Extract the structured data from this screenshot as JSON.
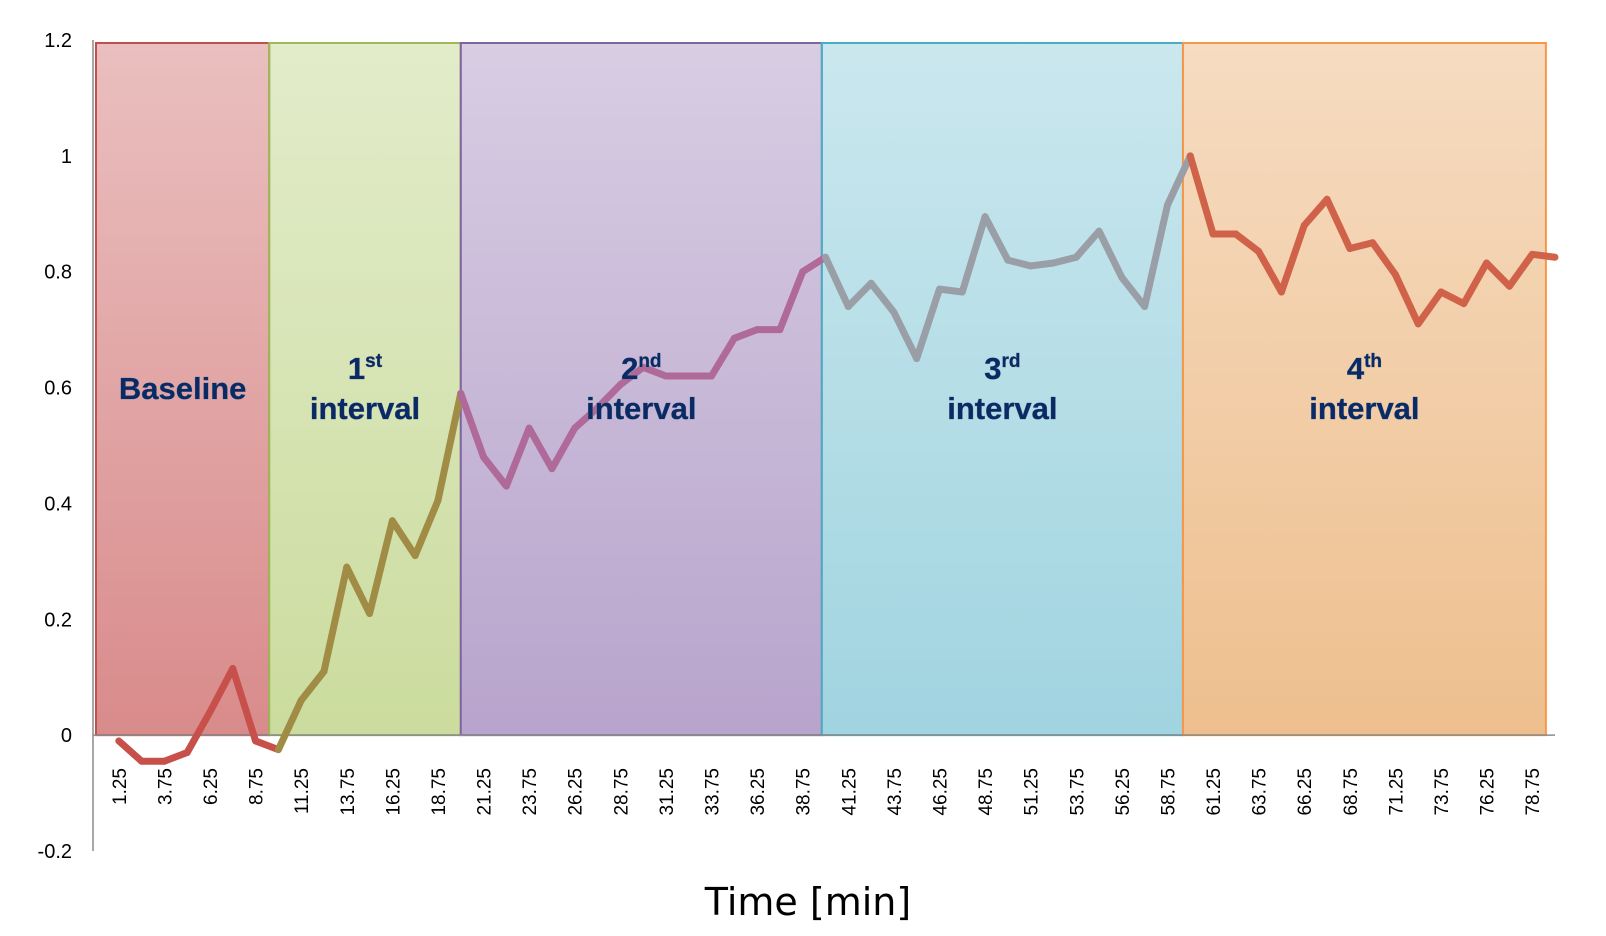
{
  "chart_data": {
    "type": "line",
    "title": "",
    "xlabel": "Time [min]",
    "ylabel": "",
    "ylim": [
      -0.2,
      1.2
    ],
    "yticks": [
      -0.2,
      0,
      0.2,
      0.4,
      0.6,
      0.8,
      1,
      1.2
    ],
    "ytick_labels": [
      "-0.2",
      "0",
      "0.2",
      "0.4",
      "0.6",
      "0.8",
      "1",
      "1.2"
    ],
    "grid": false,
    "legend": "none",
    "xtick_labels": [
      "1.25",
      "3.75",
      "6.25",
      "8.75",
      "11.25",
      "13.75",
      "16.25",
      "18.75",
      "21.25",
      "23.75",
      "26.25",
      "28.75",
      "31.25",
      "33.75",
      "36.25",
      "38.75",
      "41.25",
      "43.75",
      "46.25",
      "48.75",
      "51.25",
      "53.75",
      "56.25",
      "58.75",
      "61.25",
      "63.75",
      "66.25",
      "68.75",
      "71.25",
      "73.75",
      "76.25",
      "78.75"
    ],
    "x": [
      1.25,
      2.5,
      3.75,
      5,
      6.25,
      7.5,
      8.75,
      10,
      11.25,
      12.5,
      13.75,
      15,
      16.25,
      17.5,
      18.75,
      20,
      21.25,
      22.5,
      23.75,
      25,
      26.25,
      27.5,
      28.75,
      30,
      31.25,
      32.5,
      33.75,
      35,
      36.25,
      37.5,
      38.75,
      40,
      41.25,
      42.5,
      43.75,
      45,
      46.25,
      47.5,
      48.75,
      50,
      51.25,
      52.5,
      53.75,
      55,
      56.25,
      57.5,
      58.75,
      60,
      61.25,
      62.5,
      63.75,
      65,
      66.25,
      67.5,
      68.75,
      70,
      71.25,
      72.5,
      73.75,
      75,
      76.25,
      77.5,
      78.75,
      80
    ],
    "y": [
      -0.01,
      -0.045,
      -0.045,
      -0.03,
      0.04,
      0.115,
      -0.01,
      -0.025,
      0.06,
      0.11,
      0.29,
      0.21,
      0.37,
      0.31,
      0.405,
      0.59,
      0.48,
      0.43,
      0.53,
      0.46,
      0.53,
      0.565,
      0.605,
      0.635,
      0.62,
      0.62,
      0.62,
      0.685,
      0.7,
      0.7,
      0.8,
      0.825,
      0.74,
      0.78,
      0.73,
      0.65,
      0.77,
      0.765,
      0.895,
      0.82,
      0.81,
      0.815,
      0.825,
      0.87,
      0.79,
      0.74,
      0.915,
      1.0,
      0.865,
      0.865,
      0.835,
      0.765,
      0.88,
      0.925,
      0.84,
      0.85,
      0.795,
      0.71,
      0.765,
      0.745,
      0.815,
      0.775,
      0.83,
      0.825
    ],
    "intervals": [
      {
        "label": "Baseline",
        "sup": "",
        "label2": "",
        "x_start": 0,
        "x_end": 9.5,
        "color": "#d98b8b",
        "line_color": "#c0504d"
      },
      {
        "label": "1",
        "sup": "st",
        "label2": "interval",
        "x_start": 9.5,
        "x_end": 20.0,
        "color": "#cbdc9e",
        "line_color": "#9bbb59"
      },
      {
        "label": "2",
        "sup": "nd",
        "label2": "interval",
        "x_start": 20.0,
        "x_end": 39.8,
        "color": "#b8a4cc",
        "line_color": "#8064a2"
      },
      {
        "label": "3",
        "sup": "rd",
        "label2": "interval",
        "x_start": 39.8,
        "x_end": 59.6,
        "color": "#a0d4e0",
        "line_color": "#4bacc6"
      },
      {
        "label": "4",
        "sup": "th",
        "label2": "interval",
        "x_start": 59.6,
        "x_end": 79.5,
        "color": "#eebf8e",
        "line_color": "#f79646"
      }
    ]
  }
}
